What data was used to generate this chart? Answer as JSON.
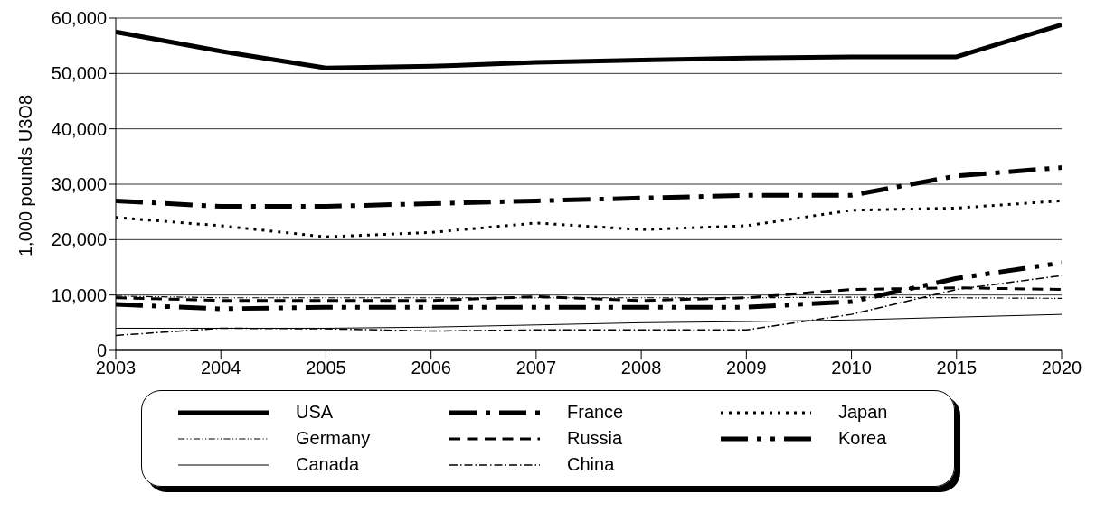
{
  "chart_data": {
    "type": "line",
    "ylabel": "1,000 pounds U3O8",
    "categories": [
      "2003",
      "2004",
      "2005",
      "2006",
      "2007",
      "2008",
      "2009",
      "2010",
      "2015",
      "2020"
    ],
    "ylim": [
      0,
      60000
    ],
    "yticks": [
      {
        "value": 0,
        "label": "0"
      },
      {
        "value": 10000,
        "label": "10,000"
      },
      {
        "value": 20000,
        "label": "20,000"
      },
      {
        "value": 30000,
        "label": "30,000"
      },
      {
        "value": 40000,
        "label": "40,000"
      },
      {
        "value": 50000,
        "label": "50,000"
      },
      {
        "value": 60000,
        "label": "60,000"
      }
    ],
    "grid": "y",
    "legend": "bottom",
    "marker": "none",
    "series": [
      {
        "name": "USA",
        "color": "#000000",
        "line_style": "solid",
        "values": [
          57500,
          54000,
          51000,
          51300,
          52000,
          52400,
          52800,
          53000,
          53000,
          58800
        ]
      },
      {
        "name": "France",
        "color": "#000000",
        "line_style": "dashdot",
        "values": [
          27000,
          26000,
          26000,
          26500,
          27000,
          27500,
          28000,
          28000,
          31500,
          33000
        ]
      },
      {
        "name": "Japan",
        "color": "#000000",
        "line_style": "dotted",
        "values": [
          24000,
          22500,
          20500,
          21300,
          23000,
          21800,
          22500,
          25300,
          25700,
          27000
        ]
      },
      {
        "name": "Germany",
        "color": "#000000",
        "line_style": "dashdotdot",
        "values": [
          9800,
          9500,
          9500,
          9500,
          9500,
          9500,
          9500,
          9600,
          9500,
          9400
        ]
      },
      {
        "name": "Russia",
        "color": "#000000",
        "line_style": "dashed",
        "values": [
          9500,
          9000,
          9000,
          9000,
          9700,
          9000,
          9500,
          11000,
          11300,
          11000
        ]
      },
      {
        "name": "Korea",
        "color": "#000000",
        "line_style": "dashdotdot",
        "values": [
          8300,
          7500,
          7800,
          7800,
          7800,
          7800,
          7800,
          8800,
          13000,
          15800
        ]
      },
      {
        "name": "Canada",
        "color": "#000000",
        "line_style": "solid",
        "values": [
          4000,
          4000,
          4000,
          4200,
          4600,
          5000,
          5200,
          5500,
          6000,
          6500
        ]
      },
      {
        "name": "China",
        "color": "#000000",
        "line_style": "dashdot",
        "values": [
          2700,
          4000,
          3900,
          3500,
          3700,
          3700,
          3700,
          6500,
          11000,
          13500
        ]
      }
    ]
  }
}
